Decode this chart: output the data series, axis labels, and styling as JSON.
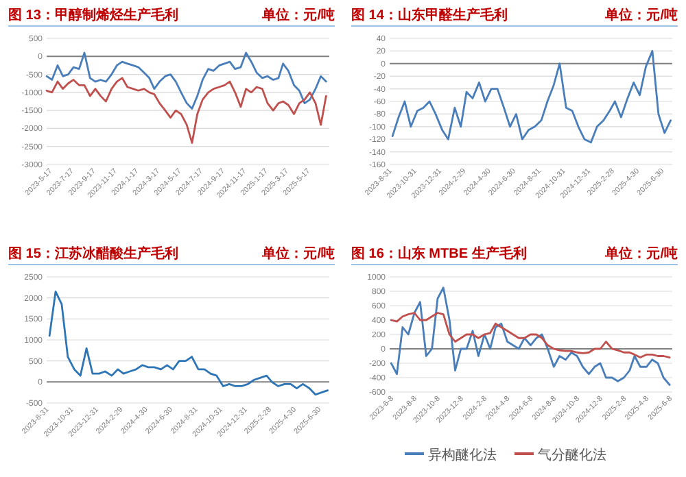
{
  "chart_data": [
    {
      "type": "line",
      "title": "图 13：甲醇制烯烃生产毛利",
      "subtitle": "单位：元/吨",
      "grid": "y",
      "legend": false,
      "x": [
        "2023-05-01",
        "2023-05-16",
        "2023-06-01",
        "2023-06-16",
        "2023-07-01",
        "2023-07-16",
        "2023-08-01",
        "2023-08-16",
        "2023-09-01",
        "2023-09-16",
        "2023-10-01",
        "2023-10-16",
        "2023-11-01",
        "2023-11-16",
        "2023-12-01",
        "2023-12-16",
        "2024-01-01",
        "2024-01-16",
        "2024-02-01",
        "2024-02-16",
        "2024-03-01",
        "2024-03-16",
        "2024-04-01",
        "2024-04-16",
        "2024-05-01",
        "2024-05-16",
        "2024-06-01",
        "2024-06-16",
        "2024-07-01",
        "2024-07-16",
        "2024-08-01",
        "2024-08-16",
        "2024-09-01",
        "2024-09-16",
        "2024-10-01",
        "2024-10-16",
        "2024-11-01",
        "2024-11-16",
        "2024-12-01",
        "2024-12-16",
        "2025-01-01",
        "2025-01-16",
        "2025-02-01",
        "2025-02-16",
        "2025-03-01",
        "2025-03-16",
        "2025-04-01",
        "2025-04-16",
        "2025-05-01",
        "2025-05-16",
        "2025-06-01",
        "2025-06-16",
        "2025-07-01"
      ],
      "xlim": [
        "2023-05-01",
        "2025-07-10"
      ],
      "xticks": [
        {
          "value": "2023-05-17",
          "label": "2023-5-17"
        },
        {
          "value": "2023-07-17",
          "label": "2023-7-17"
        },
        {
          "value": "2023-09-17",
          "label": "2023-9-17"
        },
        {
          "value": "2023-11-17",
          "label": "2023-11-17"
        },
        {
          "value": "2024-01-17",
          "label": "2024-1-17"
        },
        {
          "value": "2024-03-17",
          "label": "2024-3-17"
        },
        {
          "value": "2024-05-17",
          "label": "2024-5-17"
        },
        {
          "value": "2024-07-17",
          "label": "2024-7-17"
        },
        {
          "value": "2024-09-17",
          "label": "2024-9-17"
        },
        {
          "value": "2024-11-17",
          "label": "2024-11-17"
        },
        {
          "value": "2025-01-17",
          "label": "2025-1-17"
        },
        {
          "value": "2025-03-17",
          "label": "2025-3-17"
        },
        {
          "value": "2025-05-17",
          "label": "2025-5-17"
        }
      ],
      "ylim": [
        -3000,
        500
      ],
      "yticks": [
        -3000,
        -2500,
        -2000,
        -1500,
        -1000,
        -500,
        0,
        500
      ],
      "series": [
        {
          "color": "#4a7ebb",
          "values": [
            -550,
            -650,
            -250,
            -550,
            -500,
            -300,
            -350,
            100,
            -600,
            -700,
            -650,
            -700,
            -500,
            -250,
            -150,
            -200,
            -250,
            -300,
            -450,
            -600,
            -900,
            -700,
            -550,
            -500,
            -700,
            -1000,
            -1300,
            -1450,
            -1100,
            -650,
            -350,
            -400,
            -250,
            -200,
            -150,
            -350,
            -300,
            100,
            -150,
            -450,
            -600,
            -550,
            -650,
            -600,
            -200,
            -400,
            -800,
            -950,
            -1300,
            -1200,
            -900,
            -550,
            -700
          ]
        },
        {
          "color": "#c0504d",
          "values": [
            -950,
            -1000,
            -700,
            -900,
            -750,
            -650,
            -800,
            -800,
            -1100,
            -900,
            -1100,
            -1250,
            -900,
            -700,
            -600,
            -850,
            -900,
            -950,
            -900,
            -1000,
            -1050,
            -1300,
            -1500,
            -1700,
            -1500,
            -1600,
            -1900,
            -2400,
            -1600,
            -1200,
            -1000,
            -900,
            -850,
            -800,
            -700,
            -1000,
            -1400,
            -900,
            -1000,
            -850,
            -900,
            -1300,
            -1500,
            -1300,
            -1250,
            -1350,
            -1600,
            -1300,
            -1200,
            -1000,
            -1300,
            -1900,
            -1100
          ]
        }
      ]
    },
    {
      "type": "line",
      "title": "图 14：山东甲醛生产毛利",
      "subtitle": "单位：元/吨",
      "grid": "y",
      "legend": false,
      "x": [
        "2023-09-01",
        "2023-09-16",
        "2023-10-01",
        "2023-10-16",
        "2023-11-01",
        "2023-11-16",
        "2023-12-01",
        "2023-12-16",
        "2024-01-01",
        "2024-01-16",
        "2024-02-01",
        "2024-02-16",
        "2024-03-01",
        "2024-03-16",
        "2024-04-01",
        "2024-04-16",
        "2024-05-01",
        "2024-05-16",
        "2024-06-01",
        "2024-06-16",
        "2024-07-01",
        "2024-07-16",
        "2024-08-01",
        "2024-08-16",
        "2024-09-01",
        "2024-09-16",
        "2024-10-01",
        "2024-10-16",
        "2024-11-01",
        "2024-11-16",
        "2024-12-01",
        "2024-12-16",
        "2025-01-01",
        "2025-01-16",
        "2025-02-01",
        "2025-02-16",
        "2025-03-01",
        "2025-03-16",
        "2025-04-01",
        "2025-04-16",
        "2025-05-01",
        "2025-05-16",
        "2025-06-01",
        "2025-06-16",
        "2025-07-01",
        "2025-07-16"
      ],
      "xlim": [
        "2023-08-25",
        "2025-07-20"
      ],
      "xticks": [
        {
          "value": "2023-08-31",
          "label": "2023-8-31"
        },
        {
          "value": "2023-10-31",
          "label": "2023-10-31"
        },
        {
          "value": "2023-12-31",
          "label": "2023-12-31"
        },
        {
          "value": "2024-02-29",
          "label": "2024-2-29"
        },
        {
          "value": "2024-04-30",
          "label": "2024-4-30"
        },
        {
          "value": "2024-06-30",
          "label": "2024-6-30"
        },
        {
          "value": "2024-08-31",
          "label": "2024-8-31"
        },
        {
          "value": "2024-10-31",
          "label": "2024-10-31"
        },
        {
          "value": "2024-12-31",
          "label": "2024-12-31"
        },
        {
          "value": "2025-02-28",
          "label": "2025-2-28"
        },
        {
          "value": "2025-04-30",
          "label": "2025-4-30"
        },
        {
          "value": "2025-06-30",
          "label": "2025-6-30"
        }
      ],
      "ylim": [
        -160,
        40
      ],
      "yticks": [
        -160,
        -140,
        -120,
        -100,
        -80,
        -60,
        -40,
        -20,
        0,
        20,
        40
      ],
      "series": [
        {
          "color": "#4a7ebb",
          "values": [
            -115,
            -85,
            -60,
            -100,
            -75,
            -70,
            -60,
            -80,
            -105,
            -120,
            -70,
            -100,
            -45,
            -55,
            -30,
            -60,
            -40,
            -40,
            -70,
            -100,
            -80,
            -120,
            -105,
            -100,
            -90,
            -60,
            -35,
            0,
            -70,
            -75,
            -100,
            -120,
            -125,
            -100,
            -90,
            -75,
            -60,
            -85,
            -55,
            -30,
            -50,
            -5,
            20,
            -80,
            -110,
            -90
          ]
        }
      ]
    },
    {
      "type": "line",
      "title": "图 15：江苏冰醋酸生产毛利",
      "subtitle": "单位：元/吨",
      "grid": "y",
      "legend": false,
      "x": [
        "2023-09-01",
        "2023-09-16",
        "2023-10-01",
        "2023-10-16",
        "2023-11-01",
        "2023-11-16",
        "2023-12-01",
        "2023-12-16",
        "2024-01-01",
        "2024-01-16",
        "2024-02-01",
        "2024-02-16",
        "2024-03-01",
        "2024-03-16",
        "2024-04-01",
        "2024-04-16",
        "2024-05-01",
        "2024-05-16",
        "2024-06-01",
        "2024-06-16",
        "2024-07-01",
        "2024-07-16",
        "2024-08-01",
        "2024-08-16",
        "2024-09-01",
        "2024-09-16",
        "2024-10-01",
        "2024-10-16",
        "2024-11-01",
        "2024-11-16",
        "2024-12-01",
        "2024-12-16",
        "2025-01-01",
        "2025-01-16",
        "2025-02-01",
        "2025-02-16",
        "2025-03-01",
        "2025-03-16",
        "2025-04-01",
        "2025-04-16",
        "2025-05-01",
        "2025-05-16",
        "2025-06-01",
        "2025-06-16",
        "2025-07-01",
        "2025-07-16"
      ],
      "xlim": [
        "2023-08-25",
        "2025-07-20"
      ],
      "xticks": [
        {
          "value": "2023-08-31",
          "label": "2023-8-31"
        },
        {
          "value": "2023-10-31",
          "label": "2023-10-31"
        },
        {
          "value": "2023-12-31",
          "label": "2023-12-31"
        },
        {
          "value": "2024-02-29",
          "label": "2024-2-29"
        },
        {
          "value": "2024-04-30",
          "label": "2024-4-30"
        },
        {
          "value": "2024-06-30",
          "label": "2024-6-30"
        },
        {
          "value": "2024-08-31",
          "label": "2024-8-31"
        },
        {
          "value": "2024-10-31",
          "label": "2024-10-31"
        },
        {
          "value": "2024-12-31",
          "label": "2024-12-31"
        },
        {
          "value": "2025-02-28",
          "label": "2025-2-28"
        },
        {
          "value": "2025-04-30",
          "label": "2025-4-30"
        },
        {
          "value": "2025-06-30",
          "label": "2025-6-30"
        }
      ],
      "ylim": [
        -500,
        2500
      ],
      "yticks": [
        -500,
        0,
        500,
        1000,
        1500,
        2000,
        2500
      ],
      "series": [
        {
          "color": "#2e75b6",
          "values": [
            1100,
            2150,
            1850,
            600,
            300,
            150,
            800,
            200,
            200,
            250,
            150,
            300,
            200,
            250,
            300,
            400,
            350,
            350,
            300,
            400,
            300,
            500,
            500,
            600,
            300,
            300,
            200,
            150,
            -100,
            -50,
            -100,
            -100,
            -50,
            50,
            100,
            150,
            0,
            -100,
            -50,
            -50,
            -150,
            -50,
            -150,
            -300,
            -250,
            -200
          ]
        }
      ]
    },
    {
      "type": "line",
      "title": "图 16：山东 MTBE 生产毛利",
      "subtitle": "单位：元/吨",
      "grid": "y",
      "legend": "bottom",
      "x": [
        "2023-06-01",
        "2023-06-16",
        "2023-07-01",
        "2023-07-16",
        "2023-08-01",
        "2023-08-16",
        "2023-09-01",
        "2023-09-16",
        "2023-10-01",
        "2023-10-16",
        "2023-11-01",
        "2023-11-16",
        "2023-12-01",
        "2023-12-16",
        "2024-01-01",
        "2024-01-16",
        "2024-02-01",
        "2024-02-16",
        "2024-03-01",
        "2024-03-16",
        "2024-04-01",
        "2024-04-16",
        "2024-05-01",
        "2024-05-16",
        "2024-06-01",
        "2024-06-16",
        "2024-07-01",
        "2024-07-16",
        "2024-08-01",
        "2024-08-16",
        "2024-09-01",
        "2024-09-16",
        "2024-10-01",
        "2024-10-16",
        "2024-11-01",
        "2024-11-16",
        "2024-12-01",
        "2024-12-16",
        "2025-01-01",
        "2025-01-16",
        "2025-02-01",
        "2025-02-16",
        "2025-03-01",
        "2025-03-16",
        "2025-04-01",
        "2025-04-16",
        "2025-05-01",
        "2025-05-16",
        "2025-06-01"
      ],
      "xlim": [
        "2023-05-28",
        "2025-06-08"
      ],
      "xticks": [
        {
          "value": "2023-06-08",
          "label": "2023-6-8"
        },
        {
          "value": "2023-08-08",
          "label": "2023-8-8"
        },
        {
          "value": "2023-10-08",
          "label": "2023-10-8"
        },
        {
          "value": "2023-12-08",
          "label": "2023-12-8"
        },
        {
          "value": "2024-02-08",
          "label": "2024-2-8"
        },
        {
          "value": "2024-04-08",
          "label": "2024-4-8"
        },
        {
          "value": "2024-06-08",
          "label": "2024-6-8"
        },
        {
          "value": "2024-08-08",
          "label": "2024-8-8"
        },
        {
          "value": "2024-10-08",
          "label": "2024-10-8"
        },
        {
          "value": "2024-12-08",
          "label": "2024-12-8"
        },
        {
          "value": "2025-02-08",
          "label": "2025-2-8"
        },
        {
          "value": "2025-04-08",
          "label": "2025-4-8"
        },
        {
          "value": "2025-06-08",
          "label": "2025-6-8"
        }
      ],
      "ylim": [
        -600,
        1000
      ],
      "yticks": [
        -600,
        -400,
        -200,
        0,
        200,
        400,
        600,
        800,
        1000
      ],
      "series": [
        {
          "name": "异构醚化法",
          "color": "#4a7ebb",
          "values": [
            -200,
            -350,
            300,
            200,
            500,
            650,
            -100,
            0,
            700,
            850,
            400,
            -300,
            0,
            0,
            250,
            -100,
            200,
            0,
            300,
            350,
            100,
            50,
            0,
            150,
            50,
            150,
            200,
            0,
            -250,
            -100,
            -150,
            -50,
            -100,
            -250,
            -350,
            -250,
            -200,
            -400,
            -400,
            -450,
            -400,
            -300,
            -100,
            -250,
            -250,
            -150,
            -200,
            -400,
            -500
          ]
        },
        {
          "name": "气分醚化法",
          "color": "#c0504d",
          "values": [
            400,
            380,
            450,
            480,
            500,
            400,
            400,
            450,
            500,
            480,
            200,
            100,
            150,
            200,
            200,
            150,
            200,
            220,
            350,
            300,
            250,
            200,
            150,
            150,
            200,
            200,
            150,
            50,
            0,
            -20,
            -30,
            -30,
            -50,
            -60,
            -50,
            0,
            0,
            100,
            0,
            -20,
            -50,
            -50,
            -80,
            -120,
            -80,
            -80,
            -100,
            -100,
            -120
          ]
        }
      ]
    }
  ]
}
